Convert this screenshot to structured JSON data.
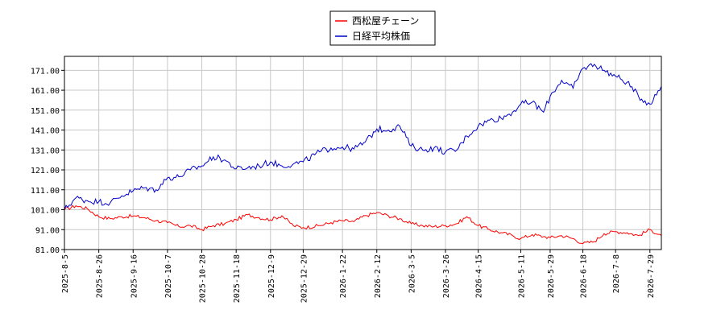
{
  "chart_data": {
    "type": "line",
    "legend_position": "top-center",
    "grid": true,
    "ylim": [
      81,
      178
    ],
    "y_ticks": [
      "81.00",
      "91.00",
      "101.00",
      "111.00",
      "121.00",
      "131.00",
      "141.00",
      "151.00",
      "161.00",
      "171.00"
    ],
    "x_range": [
      "2025-08-05",
      "2026-08-05"
    ],
    "x_ticks": [
      "2025-8-5",
      "2025-8-26",
      "2025-9-16",
      "2025-10-7",
      "2025-10-28",
      "2025-11-18",
      "2025-12-9",
      "2025-12-29",
      "2026-1-22",
      "2026-2-12",
      "2026-3-5",
      "2026-3-26",
      "2026-4-15",
      "2026-5-11",
      "2026-5-29",
      "2026-6-18",
      "2026-7-8",
      "2026-7-29"
    ],
    "series": [
      {
        "name": "西松屋チェーン",
        "color": "#ff0000",
        "points": [
          [
            "2025-08-05",
            101.0
          ],
          [
            "2025-08-12",
            103.0
          ],
          [
            "2025-08-19",
            101.5
          ],
          [
            "2025-08-26",
            97.5
          ],
          [
            "2025-09-02",
            96.5
          ],
          [
            "2025-09-09",
            97.5
          ],
          [
            "2025-09-16",
            97.8
          ],
          [
            "2025-09-23",
            97.0
          ],
          [
            "2025-09-30",
            95.5
          ],
          [
            "2025-10-07",
            94.5
          ],
          [
            "2025-10-14",
            92.5
          ],
          [
            "2025-10-21",
            93.0
          ],
          [
            "2025-10-28",
            91.0
          ],
          [
            "2025-11-04",
            93.0
          ],
          [
            "2025-11-11",
            94.0
          ],
          [
            "2025-11-18",
            96.0
          ],
          [
            "2025-11-25",
            98.5
          ],
          [
            "2025-12-02",
            97.0
          ],
          [
            "2025-12-09",
            96.0
          ],
          [
            "2025-12-16",
            98.0
          ],
          [
            "2025-12-23",
            93.0
          ],
          [
            "2025-12-29",
            92.0
          ],
          [
            "2026-01-08",
            93.0
          ],
          [
            "2026-01-15",
            94.5
          ],
          [
            "2026-01-22",
            95.5
          ],
          [
            "2026-01-29",
            95.0
          ],
          [
            "2026-02-05",
            98.0
          ],
          [
            "2026-02-12",
            99.5
          ],
          [
            "2026-02-19",
            98.0
          ],
          [
            "2026-02-26",
            96.5
          ],
          [
            "2026-03-05",
            94.0
          ],
          [
            "2026-03-12",
            93.0
          ],
          [
            "2026-03-19",
            92.5
          ],
          [
            "2026-03-26",
            93.0
          ],
          [
            "2026-04-02",
            94.0
          ],
          [
            "2026-04-08",
            97.5
          ],
          [
            "2026-04-15",
            93.0
          ],
          [
            "2026-04-22",
            91.0
          ],
          [
            "2026-04-29",
            89.5
          ],
          [
            "2026-05-06",
            88.0
          ],
          [
            "2026-05-11",
            86.5
          ],
          [
            "2026-05-18",
            88.5
          ],
          [
            "2026-05-25",
            87.5
          ],
          [
            "2026-05-29",
            87.0
          ],
          [
            "2026-06-05",
            88.0
          ],
          [
            "2026-06-12",
            86.5
          ],
          [
            "2026-06-18",
            84.0
          ],
          [
            "2026-06-25",
            85.0
          ],
          [
            "2026-07-01",
            89.0
          ],
          [
            "2026-07-08",
            90.0
          ],
          [
            "2026-07-15",
            89.5
          ],
          [
            "2026-07-22",
            88.0
          ],
          [
            "2026-07-29",
            91.0
          ],
          [
            "2026-08-05",
            88.0
          ]
        ]
      },
      {
        "name": "日経平均株価",
        "color": "#0000cc",
        "points": [
          [
            "2025-08-05",
            101.0
          ],
          [
            "2025-08-12",
            107.0
          ],
          [
            "2025-08-19",
            105.5
          ],
          [
            "2025-08-26",
            105.0
          ],
          [
            "2025-09-02",
            104.5
          ],
          [
            "2025-09-09",
            108.0
          ],
          [
            "2025-09-16",
            110.5
          ],
          [
            "2025-09-23",
            112.0
          ],
          [
            "2025-09-30",
            111.0
          ],
          [
            "2025-10-07",
            117.0
          ],
          [
            "2025-10-14",
            117.5
          ],
          [
            "2025-10-21",
            121.0
          ],
          [
            "2025-10-28",
            123.0
          ],
          [
            "2025-11-04",
            127.5
          ],
          [
            "2025-11-11",
            126.0
          ],
          [
            "2025-11-18",
            121.5
          ],
          [
            "2025-11-25",
            122.0
          ],
          [
            "2025-12-02",
            123.0
          ],
          [
            "2025-12-09",
            125.0
          ],
          [
            "2025-12-16",
            123.0
          ],
          [
            "2025-12-23",
            124.0
          ],
          [
            "2025-12-29",
            125.0
          ],
          [
            "2026-01-08",
            130.0
          ],
          [
            "2026-01-15",
            132.0
          ],
          [
            "2026-01-22",
            132.5
          ],
          [
            "2026-01-29",
            131.5
          ],
          [
            "2026-02-05",
            135.0
          ],
          [
            "2026-02-12",
            141.5
          ],
          [
            "2026-02-19",
            141.0
          ],
          [
            "2026-02-26",
            143.0
          ],
          [
            "2026-03-05",
            133.0
          ],
          [
            "2026-03-12",
            131.0
          ],
          [
            "2026-03-19",
            132.0
          ],
          [
            "2026-03-26",
            130.0
          ],
          [
            "2026-04-02",
            131.0
          ],
          [
            "2026-04-08",
            138.0
          ],
          [
            "2026-04-15",
            143.0
          ],
          [
            "2026-04-22",
            146.0
          ],
          [
            "2026-04-29",
            147.0
          ],
          [
            "2026-05-06",
            150.0
          ],
          [
            "2026-05-11",
            154.0
          ],
          [
            "2026-05-18",
            155.0
          ],
          [
            "2026-05-25",
            150.0
          ],
          [
            "2026-05-29",
            158.0
          ],
          [
            "2026-06-05",
            166.0
          ],
          [
            "2026-06-12",
            162.0
          ],
          [
            "2026-06-18",
            172.0
          ],
          [
            "2026-06-25",
            174.0
          ],
          [
            "2026-07-01",
            171.0
          ],
          [
            "2026-07-08",
            168.0
          ],
          [
            "2026-07-15",
            165.0
          ],
          [
            "2026-07-22",
            158.0
          ],
          [
            "2026-07-29",
            154.0
          ],
          [
            "2026-08-05",
            163.0
          ]
        ]
      }
    ]
  }
}
